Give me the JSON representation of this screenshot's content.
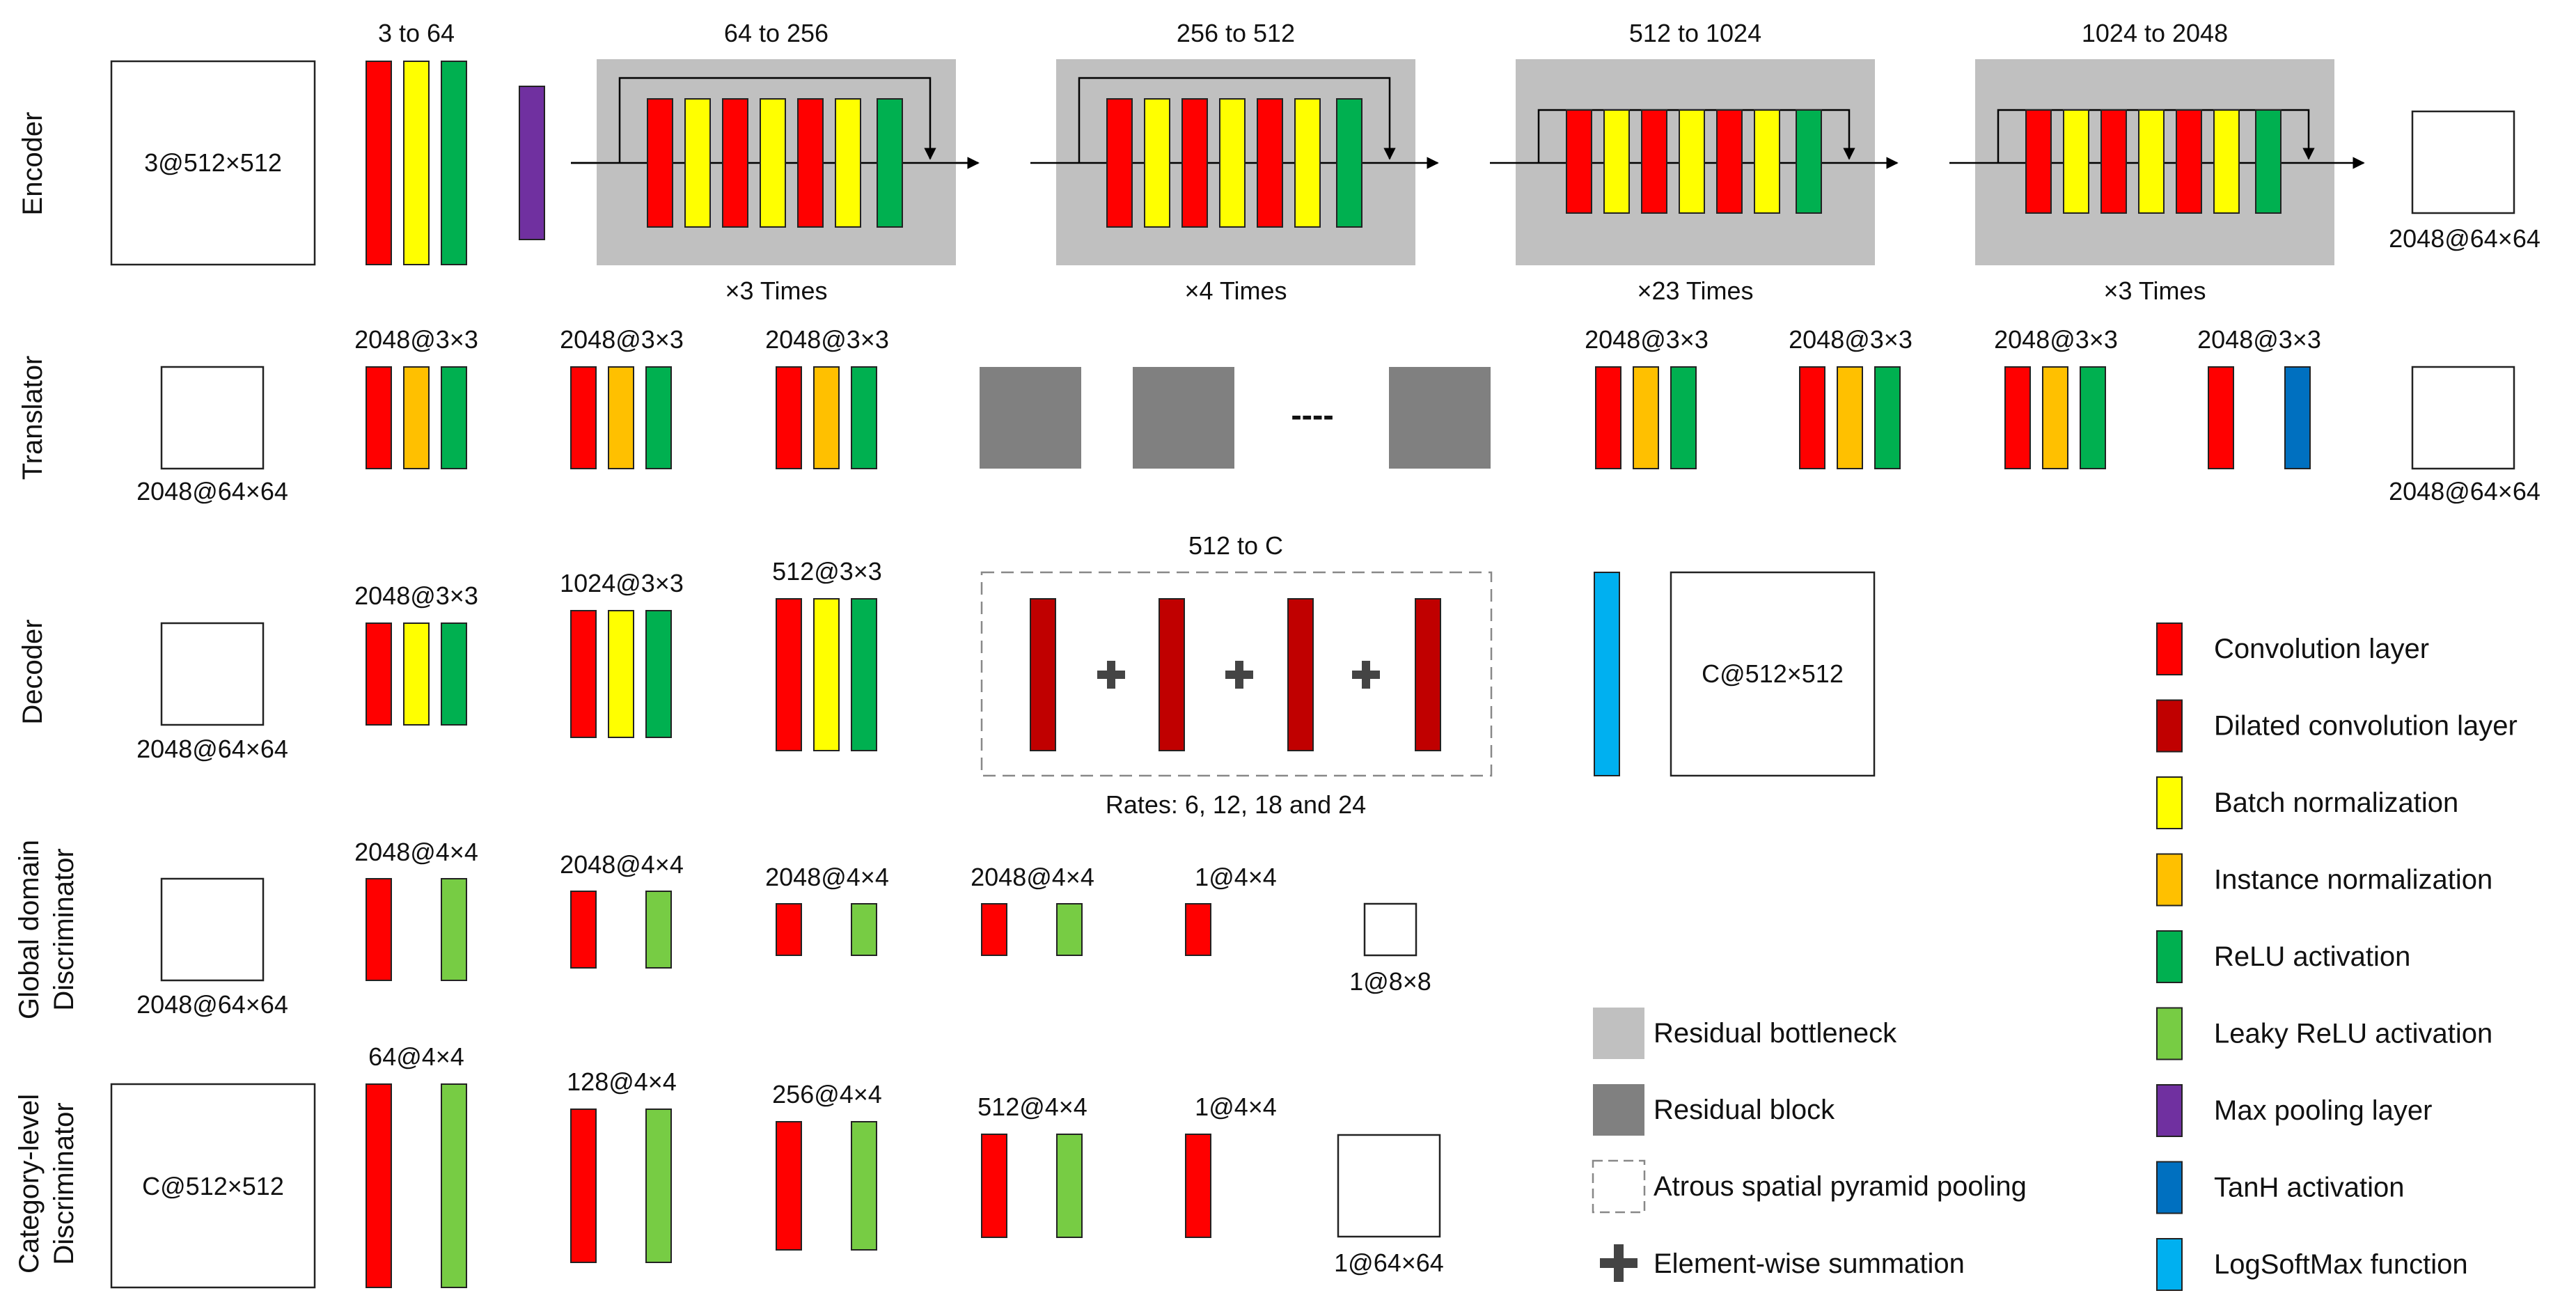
{
  "colors": {
    "conv": "#ff0000",
    "dilated": "#c00000",
    "batch": "#ffff00",
    "instance": "#ffc000",
    "relu": "#00b050",
    "leaky": "#77cc44",
    "maxpool": "#7030a0",
    "tanh": "#0070c0",
    "logsoftmax": "#00b0f0",
    "bottleneck": "#c0c0c0",
    "resblock": "#808080"
  },
  "rows": {
    "encoder": "Encoder",
    "translator": "Translator",
    "decoder": "Decoder",
    "global_line1": "Global domain",
    "global_line2": "Discriminator",
    "category_line1": "Category-level",
    "category_line2": "Discriminator"
  },
  "encoder": {
    "input": "3@512×512",
    "stem": "3 to 64",
    "stages": [
      {
        "label": "64 to 256",
        "times": "×3 Times"
      },
      {
        "label": "256 to 512",
        "times": "×4 Times"
      },
      {
        "label": "512 to 1024",
        "times": "×23 Times"
      },
      {
        "label": "1024 to 2048",
        "times": "×3 Times"
      }
    ],
    "output": "2048@64×64"
  },
  "translator": {
    "input": "2048@64×64",
    "blocks_left": [
      "2048@3×3",
      "2048@3×3",
      "2048@3×3"
    ],
    "dots": "----",
    "blocks_right": [
      "2048@3×3",
      "2048@3×3",
      "2048@3×3",
      "2048@3×3"
    ],
    "output": "2048@64×64"
  },
  "decoder": {
    "input": "2048@64×64",
    "blocks": [
      "2048@3×3",
      "1024@3×3",
      "512@3×3"
    ],
    "aspp_title": "512 to C",
    "aspp_rates": "Rates: 6, 12, 18 and 24",
    "output": "C@512×512"
  },
  "global_disc": {
    "input": "2048@64×64",
    "blocks": [
      "2048@4×4",
      "2048@4×4",
      "2048@4×4",
      "2048@4×4",
      "1@4×4"
    ],
    "output": "1@8×8"
  },
  "category_disc": {
    "input": "C@512×512",
    "blocks": [
      "64@4×4",
      "128@4×4",
      "256@4×4",
      "512@4×4",
      "1@4×4"
    ],
    "output": "1@64×64"
  },
  "legend_right": [
    {
      "label": "Convolution layer",
      "color_key": "conv"
    },
    {
      "label": "Dilated convolution layer",
      "color_key": "dilated"
    },
    {
      "label": "Batch normalization",
      "color_key": "batch"
    },
    {
      "label": "Instance normalization",
      "color_key": "instance"
    },
    {
      "label": "ReLU activation",
      "color_key": "relu"
    },
    {
      "label": "Leaky ReLU activation",
      "color_key": "leaky"
    },
    {
      "label": "Max pooling layer",
      "color_key": "maxpool"
    },
    {
      "label": "TanH activation",
      "color_key": "tanh"
    },
    {
      "label": "LogSoftMax function",
      "color_key": "logsoftmax"
    }
  ],
  "legend_left": [
    {
      "label": "Residual bottleneck",
      "kind": "bottleneck"
    },
    {
      "label": "Residual block",
      "kind": "resblock"
    },
    {
      "label": "Atrous spatial pyramid pooling",
      "kind": "aspp"
    },
    {
      "label": "Element-wise summation",
      "kind": "plus"
    }
  ]
}
